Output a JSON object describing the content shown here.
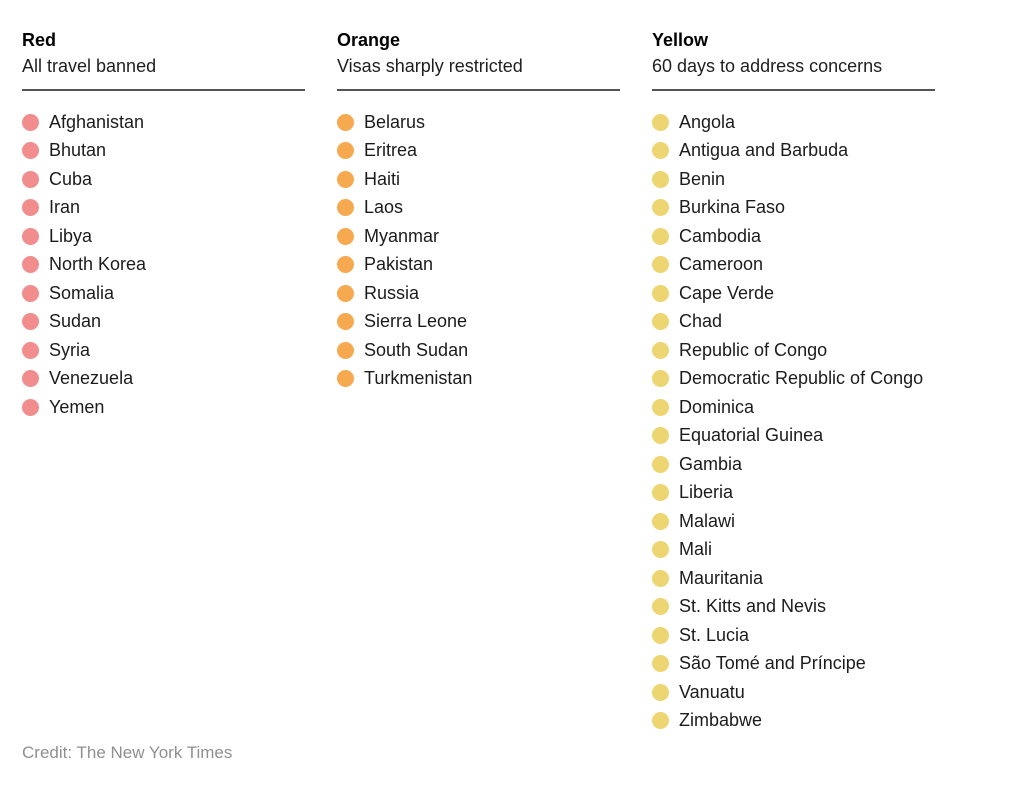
{
  "chart_data": {
    "type": "table",
    "title": "",
    "legend_position": "none",
    "groups": [
      {
        "name": "Red",
        "description": "All travel banned",
        "color": "#F28D8D",
        "countries": [
          "Afghanistan",
          "Bhutan",
          "Cuba",
          "Iran",
          "Libya",
          "North Korea",
          "Somalia",
          "Sudan",
          "Syria",
          "Venezuela",
          "Yemen"
        ]
      },
      {
        "name": "Orange",
        "description": "Visas sharply restricted",
        "color": "#F6A94F",
        "countries": [
          "Belarus",
          "Eritrea",
          "Haiti",
          "Laos",
          "Myanmar",
          "Pakistan",
          "Russia",
          "Sierra Leone",
          "South Sudan",
          "Turkmenistan"
        ]
      },
      {
        "name": "Yellow",
        "description": "60 days to address concerns",
        "color": "#EDD572",
        "countries": [
          "Angola",
          "Antigua and Barbuda",
          "Benin",
          "Burkina Faso",
          "Cambodia",
          "Cameroon",
          "Cape Verde",
          "Chad",
          "Republic of Congo",
          "Democratic Republic of Congo",
          "Dominica",
          "Equatorial Guinea",
          "Gambia",
          "Liberia",
          "Malawi",
          "Mali",
          "Mauritania",
          "St. Kitts and Nevis",
          "St. Lucia",
          "São Tomé and Príncipe",
          "Vanuatu",
          "Zimbabwe"
        ]
      }
    ],
    "credit": "Credit: The New York Times",
    "colors": {
      "background": "#ffffff",
      "title_text": "#000000",
      "body_text": "#1c1c1c",
      "rule": "#555555",
      "credit_text": "#909090"
    }
  }
}
